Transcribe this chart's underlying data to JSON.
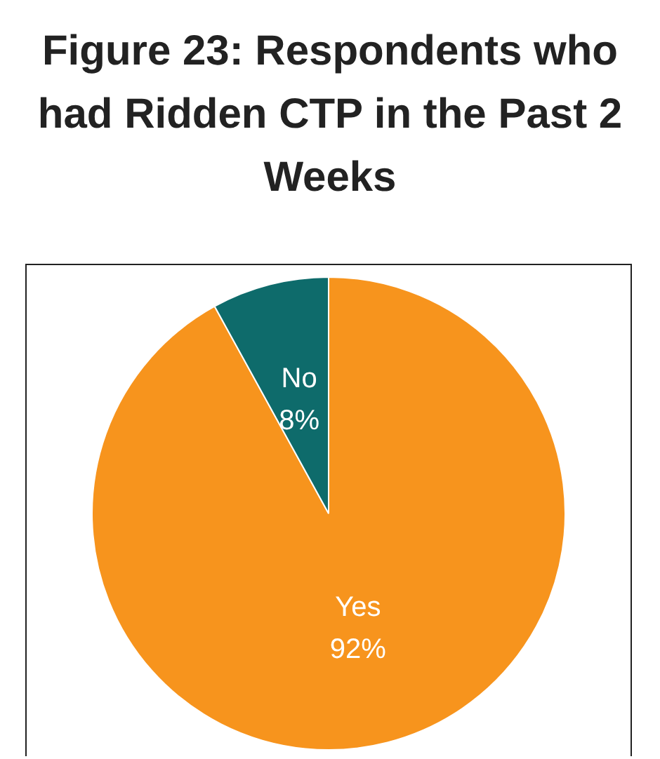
{
  "chart_data": {
    "type": "pie",
    "title": "Figure 23: Respondents who had Ridden CTP in the Past 2 Weeks",
    "categories": [
      "Yes",
      "No"
    ],
    "values": [
      92,
      8
    ],
    "colors": [
      "#f7941d",
      "#0e6b6b"
    ],
    "value_labels": [
      "92%",
      "8%"
    ],
    "legend": false
  }
}
